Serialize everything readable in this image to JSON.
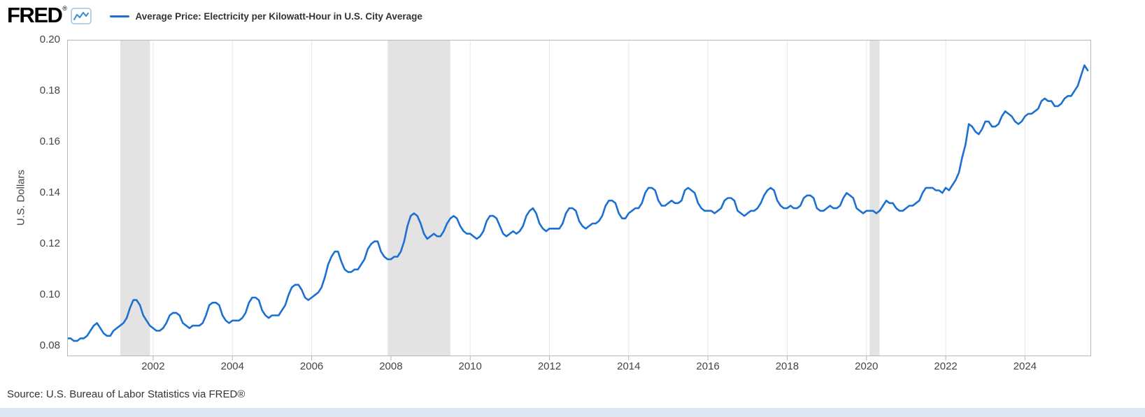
{
  "header": {
    "logo": "FRED",
    "logo_registered": "®",
    "legend": {
      "label": "Average Price: Electricity per Kilowatt-Hour in U.S. City Average"
    }
  },
  "footer": {
    "source": "Source: U.S. Bureau of Labor Statistics via FRED®"
  },
  "colors": {
    "series_line": "#1b70d1",
    "recession_band": "#e3e3e3",
    "gridline": "#e6e6e6",
    "plot_border": "#b7b7b7",
    "axis_text": "#444444",
    "footer_bg": "#dce7f3"
  },
  "chart_data": {
    "type": "line",
    "title": "Average Price: Electricity per Kilowatt-Hour in U.S. City Average",
    "xlabel": "",
    "ylabel": "U.S. Dollars",
    "legend_position": "top-left",
    "grid": "vertical-only",
    "x_range": [
      1999.83,
      2025.67
    ],
    "ylim": [
      0.076,
      0.2
    ],
    "yticks": [
      0.08,
      0.1,
      0.12,
      0.14,
      0.16,
      0.18,
      0.2
    ],
    "xticks": [
      2002,
      2004,
      2006,
      2008,
      2010,
      2012,
      2014,
      2016,
      2018,
      2020,
      2022,
      2024
    ],
    "recession_bands": [
      [
        2001.17,
        2001.92
      ],
      [
        2007.92,
        2009.5
      ],
      [
        2020.08,
        2020.33
      ]
    ],
    "series": [
      {
        "name": "Average Price: Electricity per Kilowatt-Hour in U.S. City Average",
        "units": "U.S. Dollars",
        "frequency": "monthly",
        "start": "1999-11",
        "end": "2025-08",
        "values": [
          0.083,
          0.083,
          0.082,
          0.082,
          0.083,
          0.083,
          0.084,
          0.086,
          0.088,
          0.089,
          0.087,
          0.085,
          0.084,
          0.084,
          0.086,
          0.087,
          0.088,
          0.089,
          0.091,
          0.095,
          0.098,
          0.098,
          0.096,
          0.092,
          0.09,
          0.088,
          0.087,
          0.086,
          0.086,
          0.087,
          0.089,
          0.092,
          0.093,
          0.093,
          0.092,
          0.089,
          0.088,
          0.087,
          0.088,
          0.088,
          0.088,
          0.089,
          0.092,
          0.096,
          0.097,
          0.097,
          0.096,
          0.092,
          0.09,
          0.089,
          0.09,
          0.09,
          0.09,
          0.091,
          0.093,
          0.097,
          0.099,
          0.099,
          0.098,
          0.094,
          0.092,
          0.091,
          0.092,
          0.092,
          0.092,
          0.094,
          0.096,
          0.1,
          0.103,
          0.104,
          0.104,
          0.102,
          0.099,
          0.098,
          0.099,
          0.1,
          0.101,
          0.103,
          0.107,
          0.112,
          0.115,
          0.117,
          0.117,
          0.113,
          0.11,
          0.109,
          0.109,
          0.11,
          0.11,
          0.112,
          0.114,
          0.118,
          0.12,
          0.121,
          0.121,
          0.117,
          0.115,
          0.114,
          0.114,
          0.115,
          0.115,
          0.117,
          0.121,
          0.127,
          0.131,
          0.132,
          0.131,
          0.128,
          0.124,
          0.122,
          0.123,
          0.124,
          0.123,
          0.123,
          0.125,
          0.128,
          0.13,
          0.131,
          0.13,
          0.127,
          0.125,
          0.124,
          0.124,
          0.123,
          0.122,
          0.123,
          0.125,
          0.129,
          0.131,
          0.131,
          0.13,
          0.127,
          0.124,
          0.123,
          0.124,
          0.125,
          0.124,
          0.125,
          0.127,
          0.131,
          0.133,
          0.134,
          0.132,
          0.128,
          0.126,
          0.125,
          0.126,
          0.126,
          0.126,
          0.126,
          0.128,
          0.132,
          0.134,
          0.134,
          0.133,
          0.129,
          0.127,
          0.126,
          0.127,
          0.128,
          0.128,
          0.129,
          0.131,
          0.135,
          0.137,
          0.137,
          0.136,
          0.132,
          0.13,
          0.13,
          0.132,
          0.133,
          0.134,
          0.134,
          0.136,
          0.14,
          0.142,
          0.142,
          0.141,
          0.137,
          0.135,
          0.135,
          0.136,
          0.137,
          0.136,
          0.136,
          0.137,
          0.141,
          0.142,
          0.141,
          0.14,
          0.136,
          0.134,
          0.133,
          0.133,
          0.133,
          0.132,
          0.133,
          0.134,
          0.137,
          0.138,
          0.138,
          0.137,
          0.133,
          0.132,
          0.131,
          0.132,
          0.133,
          0.133,
          0.134,
          0.136,
          0.139,
          0.141,
          0.142,
          0.141,
          0.137,
          0.135,
          0.134,
          0.134,
          0.135,
          0.134,
          0.134,
          0.135,
          0.138,
          0.139,
          0.139,
          0.138,
          0.134,
          0.133,
          0.133,
          0.134,
          0.135,
          0.134,
          0.134,
          0.135,
          0.138,
          0.14,
          0.139,
          0.138,
          0.134,
          0.133,
          0.132,
          0.133,
          0.133,
          0.133,
          0.132,
          0.133,
          0.135,
          0.137,
          0.136,
          0.136,
          0.134,
          0.133,
          0.133,
          0.134,
          0.135,
          0.135,
          0.136,
          0.137,
          0.14,
          0.142,
          0.142,
          0.142,
          0.141,
          0.141,
          0.14,
          0.142,
          0.141,
          0.143,
          0.145,
          0.148,
          0.154,
          0.159,
          0.167,
          0.166,
          0.164,
          0.163,
          0.165,
          0.168,
          0.168,
          0.166,
          0.166,
          0.167,
          0.17,
          0.172,
          0.171,
          0.17,
          0.168,
          0.167,
          0.168,
          0.17,
          0.171,
          0.171,
          0.172,
          0.173,
          0.176,
          0.177,
          0.176,
          0.176,
          0.174,
          0.174,
          0.175,
          0.177,
          0.178,
          0.178,
          0.18,
          0.182,
          0.186,
          0.19,
          0.188
        ]
      }
    ]
  }
}
